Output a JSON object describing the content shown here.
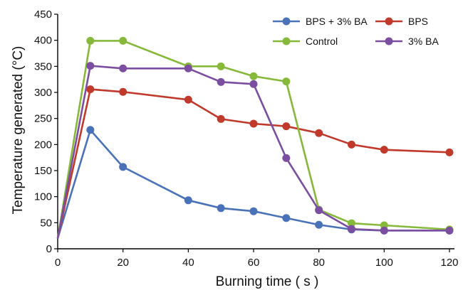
{
  "chart_data": {
    "type": "line",
    "title": "",
    "xlabel": "Burning time ( s )",
    "ylabel": "Temperature generated (°C)",
    "xlim": [
      0,
      120
    ],
    "ylim": [
      0,
      450
    ],
    "xticks": [
      "0",
      "20",
      "40",
      "60",
      "80",
      "100",
      "120"
    ],
    "yticks": [
      "0",
      "50",
      "100",
      "150",
      "200",
      "250",
      "300",
      "350",
      "400",
      "450"
    ],
    "grid": false,
    "legend_position": "top-right",
    "series": [
      {
        "name": "BPS + 3% BA",
        "color": "#4a72b8",
        "x": [
          0,
          10,
          20,
          40,
          50,
          60,
          70,
          80,
          90,
          100,
          120
        ],
        "y": [
          20,
          228,
          157,
          93,
          78,
          72,
          59,
          46,
          37,
          35,
          35
        ]
      },
      {
        "name": "BPS",
        "color": "#c0392b",
        "x": [
          0,
          10,
          20,
          40,
          50,
          60,
          70,
          80,
          90,
          100,
          120
        ],
        "y": [
          20,
          306,
          301,
          286,
          249,
          240,
          235,
          222,
          200,
          190,
          185
        ]
      },
      {
        "name": "Control",
        "color": "#86b83a",
        "x": [
          0,
          10,
          20,
          40,
          50,
          60,
          70,
          80,
          90,
          100,
          120
        ],
        "y": [
          20,
          399,
          399,
          350,
          350,
          331,
          321,
          75,
          49,
          45,
          37
        ]
      },
      {
        "name": "3% BA",
        "color": "#7b4ea0",
        "x": [
          0,
          10,
          20,
          40,
          50,
          60,
          70,
          80,
          90,
          100,
          120
        ],
        "y": [
          20,
          351,
          346,
          346,
          320,
          316,
          174,
          74,
          38,
          35,
          35
        ]
      }
    ]
  }
}
